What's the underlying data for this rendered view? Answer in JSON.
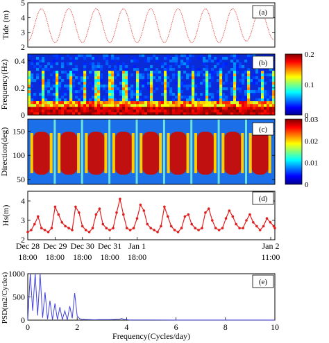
{
  "chart_data": [
    {
      "panel": "(a)",
      "type": "line",
      "ylabel": "Tide (m)",
      "ylim": [
        2,
        5
      ],
      "yticks": [
        "2",
        "3",
        "4",
        "5"
      ],
      "color": "#e8605a",
      "series": [
        {
          "x_hours_from_dec28_0000": [
            18,
            30,
            42,
            54,
            66,
            78,
            90,
            102,
            114,
            126,
            138,
            150,
            162,
            174,
            186,
            198,
            210,
            222,
            234
          ],
          "values": [
            2.4,
            4.6,
            2.3,
            4.6,
            2.3,
            4.6,
            2.3,
            4.6,
            2.3,
            4.6,
            2.3,
            4.6,
            2.3,
            4.6,
            2.3,
            4.6,
            2.4,
            4.5,
            2.5
          ]
        }
      ]
    },
    {
      "panel": "(b)",
      "type": "heatmap",
      "ylabel": "Frequency(Hz)",
      "ylim": [
        0,
        0.45
      ],
      "yticks": [
        "0",
        "0.2",
        "0.4"
      ],
      "colorbar": {
        "min": "0",
        "max": "0.2",
        "ticks": [
          "0",
          "0.1",
          "0.2"
        ]
      }
    },
    {
      "panel": "(c)",
      "type": "heatmap",
      "ylabel": "Direction(deg)",
      "ylim": [
        40,
        175
      ],
      "yticks": [
        "50",
        "100",
        "150"
      ],
      "colorbar": {
        "min": "0",
        "max": "0.03",
        "ticks": [
          "0",
          "0.01",
          "0.02",
          "0.03"
        ]
      }
    },
    {
      "panel": "(d)",
      "type": "line",
      "ylabel": "Hs(m)",
      "ylim": [
        2,
        4.5
      ],
      "yticks": [
        "2",
        "3",
        "4"
      ],
      "color": "#e02020",
      "series": [
        {
          "x_hours": [
            18,
            21,
            24,
            27,
            30,
            33,
            36,
            39,
            42,
            45,
            48,
            51,
            54,
            57,
            60,
            63,
            66,
            69,
            72,
            75,
            78,
            81,
            84,
            87,
            90,
            93,
            96,
            99,
            102,
            105,
            108,
            111,
            114,
            117,
            120,
            123,
            126,
            129,
            132,
            135,
            138,
            141,
            144,
            147,
            150,
            153,
            156,
            159,
            162,
            165,
            168,
            171,
            174,
            177,
            180,
            183,
            186,
            189,
            192,
            195,
            198,
            201,
            204,
            207,
            210,
            213,
            216,
            219,
            222,
            225,
            228,
            231,
            234,
            235
          ],
          "values": [
            2.4,
            2.5,
            2.8,
            3.2,
            2.6,
            2.5,
            2.4,
            2.6,
            3.7,
            3.3,
            2.9,
            2.7,
            2.6,
            2.5,
            3.7,
            3.4,
            2.7,
            2.5,
            2.4,
            2.6,
            3.3,
            3.6,
            2.8,
            2.6,
            2.5,
            2.6,
            3.4,
            4.1,
            3.3,
            2.6,
            2.5,
            2.6,
            3.1,
            3.8,
            3.5,
            2.8,
            2.6,
            2.5,
            2.4,
            2.7,
            3.7,
            3.2,
            2.7,
            2.5,
            2.4,
            2.6,
            3.2,
            3.3,
            2.8,
            2.6,
            2.5,
            2.6,
            3.4,
            3.6,
            3.0,
            2.6,
            2.5,
            2.6,
            3.1,
            3.5,
            3.2,
            2.8,
            2.6,
            2.6,
            3.0,
            3.3,
            2.9,
            2.7,
            2.5,
            2.7,
            3.1,
            2.9,
            2.7,
            2.6
          ]
        }
      ]
    },
    {
      "panel": "(e)",
      "type": "line",
      "xlabel": "Frequency(Cycles/day)",
      "ylabel": "PSD(m2/Cycles)",
      "xlim": [
        0,
        10
      ],
      "ylim": [
        0,
        1000
      ],
      "xticks": [
        "0",
        "2",
        "4",
        "6",
        "8",
        "10"
      ],
      "yticks": [
        "0",
        "500",
        "1000"
      ],
      "color": "#4040e0",
      "series": [
        {
          "x": [
            0,
            0.1,
            0.2,
            0.3,
            0.4,
            0.5,
            0.6,
            0.7,
            0.8,
            0.9,
            1.0,
            1.1,
            1.2,
            1.3,
            1.4,
            1.5,
            1.6,
            1.7,
            1.8,
            1.9,
            2.0,
            2.1,
            2.2,
            2.3,
            2.5,
            2.7,
            2.9,
            3.1,
            3.3,
            3.5,
            3.7,
            3.8,
            3.9,
            4.0,
            4.1,
            4.5,
            5,
            6,
            7,
            8,
            9,
            10
          ],
          "values": [
            0,
            1000,
            200,
            1000,
            100,
            1000,
            50,
            600,
            20,
            420,
            10,
            360,
            15,
            280,
            10,
            200,
            5,
            300,
            40,
            580,
            90,
            30,
            20,
            15,
            10,
            8,
            10,
            12,
            10,
            15,
            20,
            35,
            15,
            10,
            5,
            4,
            3,
            2,
            2,
            2,
            2,
            2
          ]
        }
      ]
    }
  ],
  "time_axis": {
    "ticks": [
      {
        "date": "Dec 28",
        "time": "18:00"
      },
      {
        "date": "Dec 29",
        "time": "18:00"
      },
      {
        "date": "Dec 30",
        "time": "18:00"
      },
      {
        "date": "Dec 31",
        "time": "18:00"
      },
      {
        "date": "Jan 1",
        "time": "18:00"
      },
      {
        "date": "Jan 2",
        "time": "11:00"
      }
    ]
  }
}
